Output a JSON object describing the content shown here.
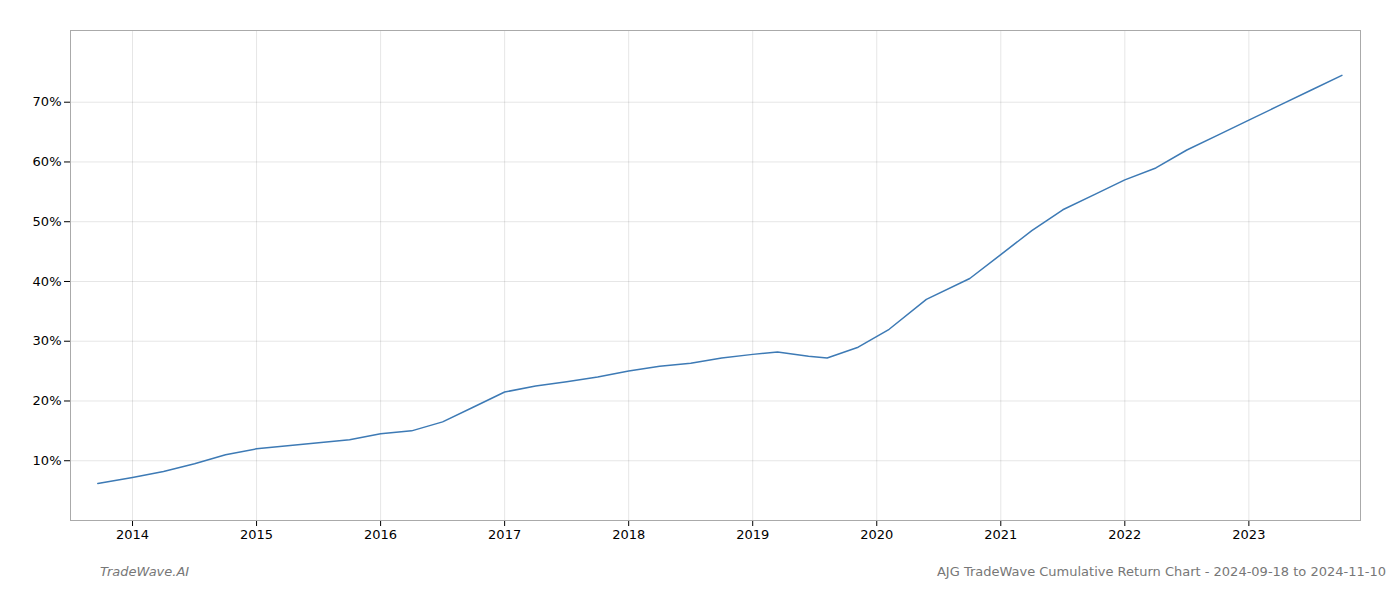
{
  "chart_data": {
    "type": "line",
    "x": [
      2013.72,
      2014.0,
      2014.25,
      2014.5,
      2014.75,
      2015.0,
      2015.25,
      2015.5,
      2015.75,
      2016.0,
      2016.25,
      2016.5,
      2016.75,
      2017.0,
      2017.25,
      2017.5,
      2017.75,
      2018.0,
      2018.25,
      2018.5,
      2018.75,
      2019.0,
      2019.2,
      2019.45,
      2019.6,
      2019.85,
      2020.1,
      2020.4,
      2020.75,
      2021.0,
      2021.25,
      2021.5,
      2021.75,
      2022.0,
      2022.25,
      2022.5,
      2022.75,
      2023.0,
      2023.25,
      2023.5,
      2023.75
    ],
    "values": [
      6.2,
      7.2,
      8.2,
      9.5,
      11.0,
      12.0,
      12.5,
      13.0,
      13.5,
      14.5,
      15.0,
      16.5,
      19.0,
      21.5,
      22.5,
      23.2,
      24.0,
      25.0,
      25.8,
      26.3,
      27.2,
      27.8,
      28.2,
      27.5,
      27.2,
      29.0,
      32.0,
      37.0,
      40.5,
      44.5,
      48.5,
      52.0,
      54.5,
      57.0,
      59.0,
      62.0,
      64.5,
      67.0,
      69.5,
      72.0,
      74.5
    ],
    "color": "#3d7ab5",
    "xlim": [
      2013.5,
      2023.9
    ],
    "xticks": [
      2014,
      2015,
      2016,
      2017,
      2018,
      2019,
      2020,
      2021,
      2022,
      2023
    ],
    "ylim": [
      0,
      82
    ],
    "yticks": [
      {
        "value": 10,
        "label": "10%"
      },
      {
        "value": 20,
        "label": "20%"
      },
      {
        "value": 30,
        "label": "30%"
      },
      {
        "value": 40,
        "label": "40%"
      },
      {
        "value": 50,
        "label": "50%"
      },
      {
        "value": 60,
        "label": "60%"
      },
      {
        "value": 70,
        "label": "70%"
      }
    ],
    "grid": true,
    "annotations": [
      "TradeWave.AI",
      "AJG TradeWave Cumulative Return Chart - 2024-09-18 to 2024-11-10"
    ]
  }
}
